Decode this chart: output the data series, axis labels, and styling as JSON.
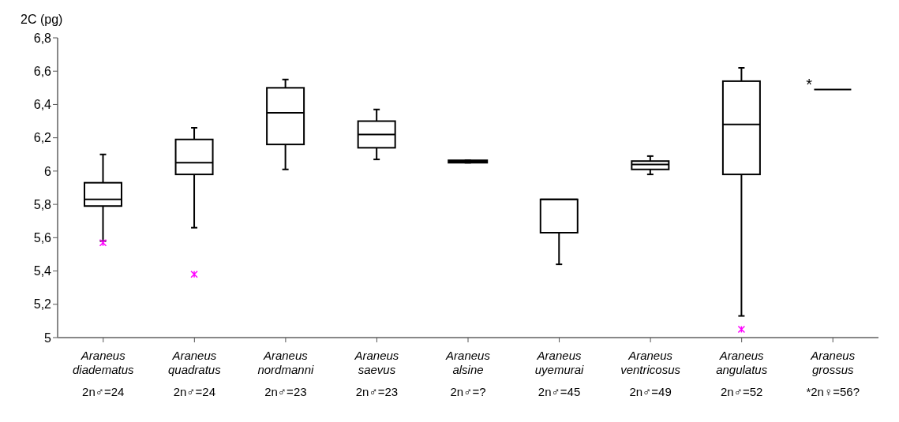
{
  "chart_data": {
    "type": "box",
    "ylabel": "2C (pg)",
    "categories": [
      "Araneus diadematus\n2n♂=24",
      "Araneus quadratus\n2n♂=24",
      "Araneus nordmanni\n2n♂=23",
      "Araneus saevus\n2n♂=23",
      "Araneus alsine\n2n♂=?",
      "Araneus uyemurai\n2n♂=45",
      "Araneus ventricosus\n2n♂=49",
      "Araneus angulatus\n2n♂=52",
      "Araneus grossus\n*2n♀=56?"
    ],
    "boxes": [
      {
        "low": 5.58,
        "q1": 5.79,
        "median": 5.83,
        "q3": 5.93,
        "high": 6.1,
        "outliers": [
          5.57
        ]
      },
      {
        "low": 5.66,
        "q1": 5.98,
        "median": 6.05,
        "q3": 6.19,
        "high": 6.26,
        "outliers": [
          5.38
        ]
      },
      {
        "low": 6.01,
        "q1": 6.16,
        "median": 6.35,
        "q3": 6.5,
        "high": 6.55
      },
      {
        "low": 6.07,
        "q1": 6.14,
        "median": 6.22,
        "q3": 6.3,
        "high": 6.37
      },
      {
        "low": 6.05,
        "q1": 6.055,
        "median": 6.06,
        "q3": 6.06,
        "high": 6.065
      },
      {
        "low": 5.44,
        "q1": 5.63,
        "median": 5.83,
        "q3": 5.83,
        "high": 5.83
      },
      {
        "low": 5.98,
        "q1": 6.01,
        "median": 6.04,
        "q3": 6.06,
        "high": 6.09
      },
      {
        "low": 5.13,
        "q1": 5.98,
        "median": 6.28,
        "q3": 6.54,
        "high": 6.62,
        "outliers": [
          5.05
        ]
      },
      {
        "low": 6.49,
        "q1": 6.49,
        "median": 6.49,
        "q3": 6.49,
        "high": 6.49
      }
    ],
    "color": "#000000",
    "ylim": [
      5,
      6.8
    ],
    "yticks": [
      5,
      {
        "value": 5.2,
        "label": "5,2"
      },
      {
        "value": 5.4,
        "label": "5,4"
      },
      {
        "value": 5.6,
        "label": "5,6"
      },
      {
        "value": 5.8,
        "label": "5,8"
      },
      6,
      {
        "value": 6.2,
        "label": "6,2"
      },
      {
        "value": 6.4,
        "label": "6,4"
      },
      {
        "value": 6.6,
        "label": "6,6"
      },
      {
        "value": 6.8,
        "label": "6,8"
      }
    ],
    "annotations": [
      "*"
    ]
  }
}
